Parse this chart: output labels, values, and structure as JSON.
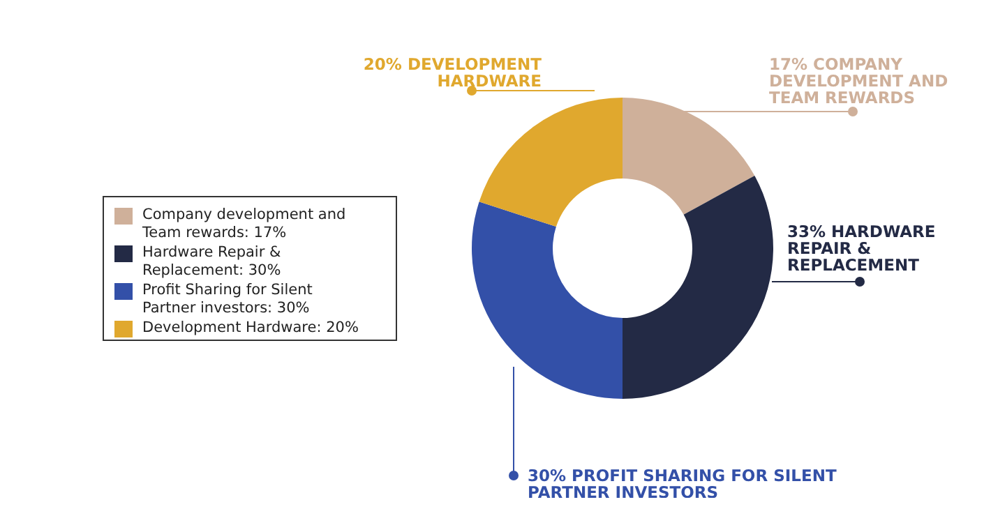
{
  "chart_data": {
    "type": "donut",
    "categories": [
      "Company development and Team rewards: 17%",
      "Hardware Repair & Replacement: 30%",
      "Profit Sharing for Silent Partner investors: 30%",
      "Development Hardware: 20%"
    ],
    "values": [
      17,
      33,
      30,
      20
    ],
    "colors": [
      "#cfb09a",
      "#232a45",
      "#3350a8",
      "#e0a82e"
    ],
    "legend": "left",
    "annotations": [
      "17% COMPANY DEVELOPMENT AND TEAM REWARDS",
      "33% HARDWARE REPAIR & REPLACEMENT",
      "30% PROFIT SHARING FOR SILENT PARTNER INVESTORS",
      "20% DEVELOPMENT HARDWARE"
    ]
  }
}
